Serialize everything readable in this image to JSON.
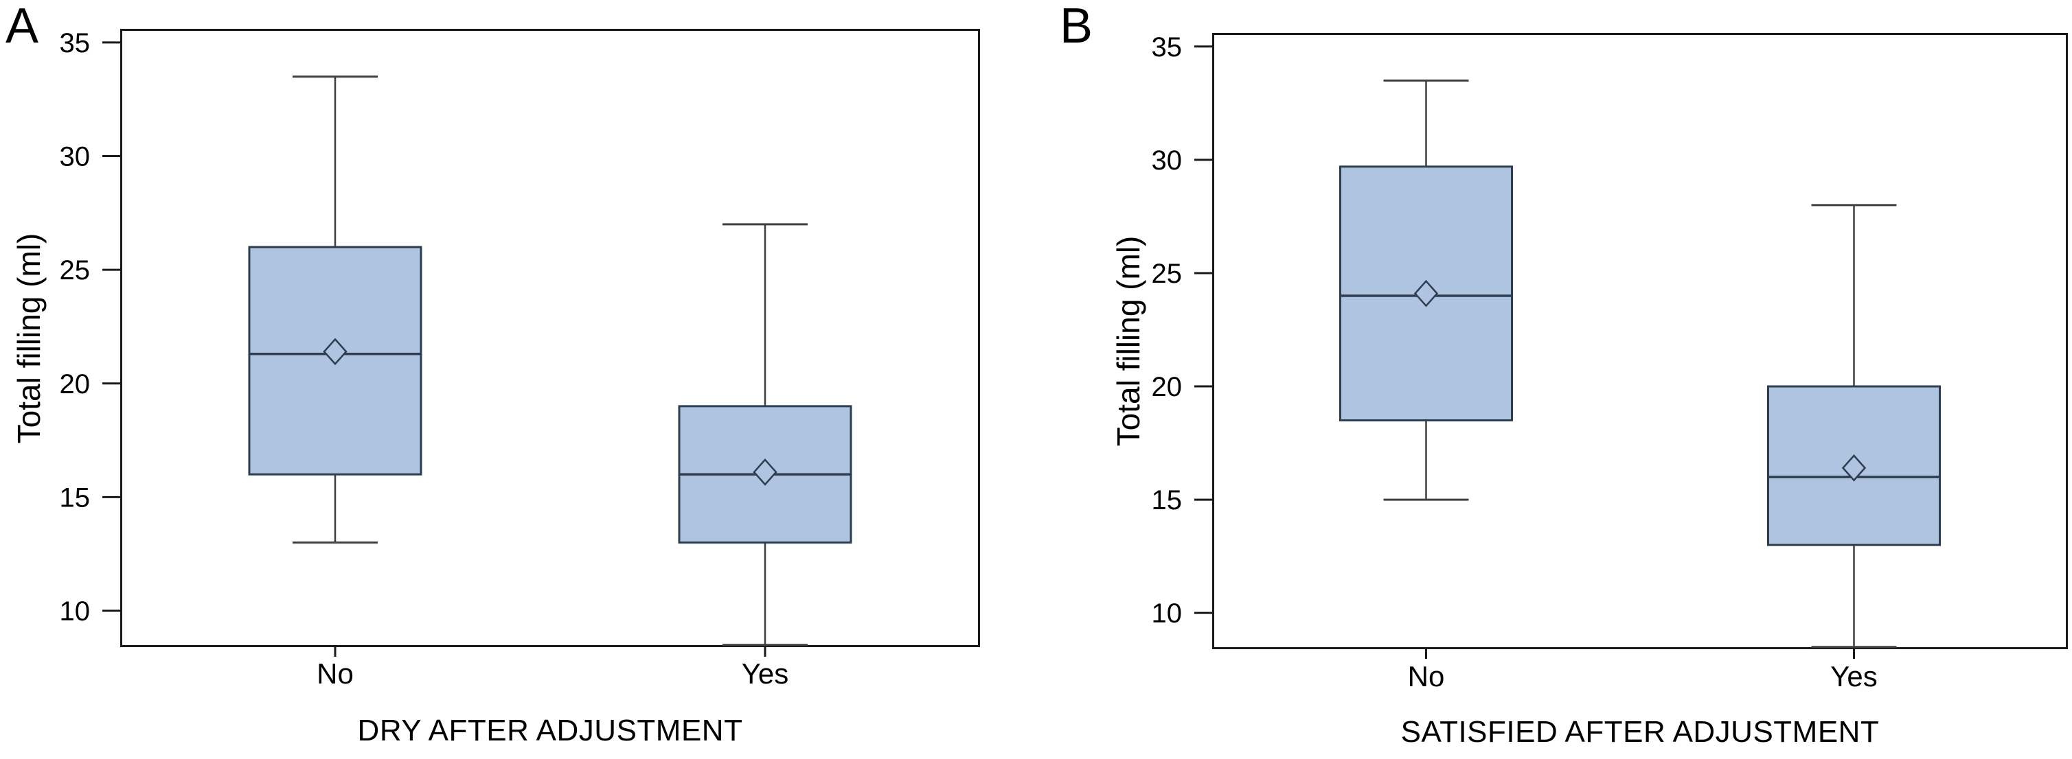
{
  "colors": {
    "box_fill": "#afc4e0",
    "box_border": "#2e3d50",
    "whisker": "#3f3f3f",
    "axis": "#1a1a1a",
    "text": "#000000"
  },
  "chart_data": [
    {
      "type": "boxplot",
      "panel_letter": "A",
      "xlabel": "DRY AFTER ADJUSTMENT",
      "ylabel": "Total filling (ml)",
      "categories": [
        "No",
        "Yes"
      ],
      "yticks": [
        10,
        15,
        20,
        25,
        30,
        35
      ],
      "ylim": [
        8.4,
        35.6
      ],
      "grid": false,
      "legend": "none",
      "boxes": [
        {
          "category": "No",
          "whisker_low": 13,
          "q1": 16,
          "median": 21.3,
          "mean": 21.4,
          "q3": 26,
          "whisker_high": 33.5
        },
        {
          "category": "Yes",
          "whisker_low": 8.5,
          "q1": 13,
          "median": 16,
          "mean": 16.1,
          "q3": 19,
          "whisker_high": 27
        }
      ]
    },
    {
      "type": "boxplot",
      "panel_letter": "B",
      "xlabel": "SATISFIED AFTER ADJUSTMENT",
      "ylabel": "Total filling (ml)",
      "categories": [
        "No",
        "Yes"
      ],
      "yticks": [
        10,
        15,
        20,
        25,
        30,
        35
      ],
      "ylim": [
        8.4,
        35.6
      ],
      "grid": false,
      "legend": "none",
      "boxes": [
        {
          "category": "No",
          "whisker_low": 15,
          "q1": 18.5,
          "median": 24,
          "mean": 24.1,
          "q3": 29.7,
          "whisker_high": 33.5
        },
        {
          "category": "Yes",
          "whisker_low": 8.5,
          "q1": 13,
          "median": 16,
          "mean": 16.4,
          "q3": 20,
          "whisker_high": 28
        }
      ]
    }
  ]
}
